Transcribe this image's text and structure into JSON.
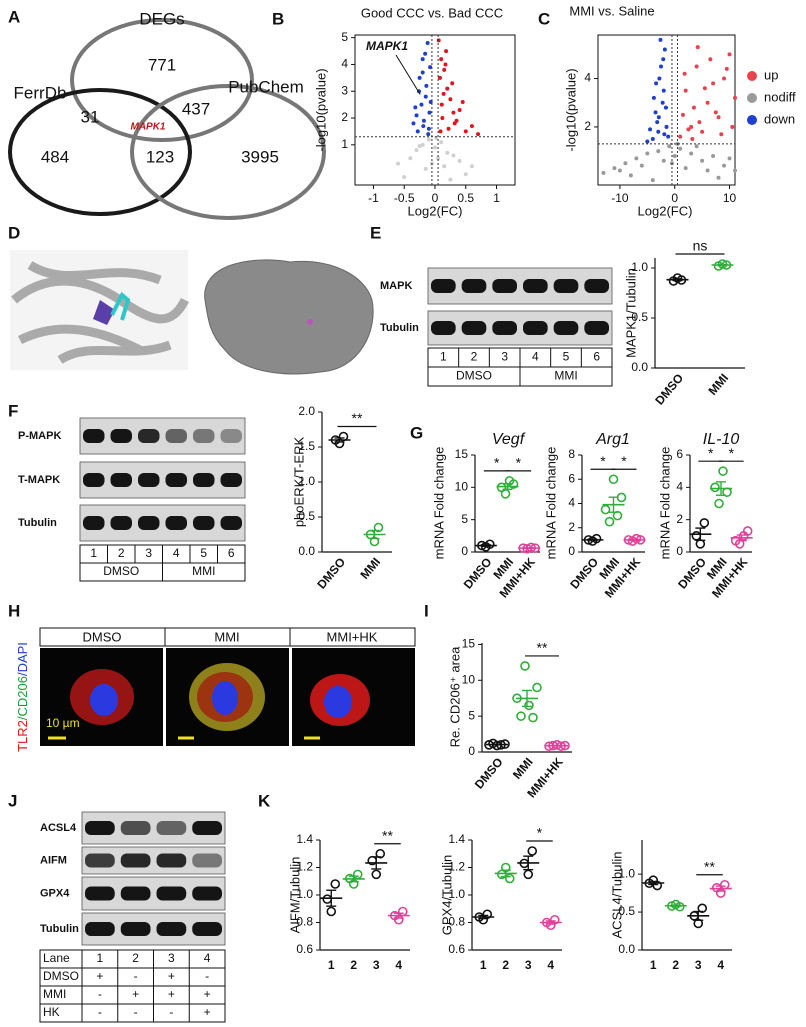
{
  "panel_labels": [
    "A",
    "B",
    "C",
    "D",
    "E",
    "F",
    "G",
    "H",
    "I",
    "J",
    "K"
  ],
  "venn": {
    "sets": [
      "DEGs",
      "FerrDb",
      "PubChem"
    ],
    "counts": [
      771,
      31,
      437,
      484,
      123,
      3995
    ],
    "highlight": "MAPK1"
  },
  "blots": [
    {
      "rows": [
        "MAPK",
        "Tubulin"
      ],
      "lanes": [
        1,
        2,
        3,
        4,
        5,
        6
      ],
      "groups": [
        "DMSO",
        "MMI"
      ]
    },
    {
      "rows": [
        "P-MAPK",
        "T-MAPK",
        "Tubulin"
      ],
      "lanes": [
        1,
        2,
        3,
        4,
        5,
        6
      ],
      "groups": [
        "DMSO",
        "MMI"
      ]
    },
    {
      "rows": [
        "ACSL4",
        "AIFM",
        "GPX4",
        "Tubulin"
      ],
      "table": [
        [
          "Lane",
          1,
          2,
          3,
          4
        ],
        [
          "DMSO",
          "+",
          "-",
          "+",
          "-"
        ],
        [
          "MMI",
          "-",
          "+",
          "+",
          "+"
        ],
        [
          "HK",
          "-",
          "-",
          "-",
          "+"
        ]
      ]
    }
  ],
  "micrographs": {
    "headers": [
      "DMSO",
      "MMI",
      "MMI+HK"
    ],
    "stain": [
      {
        "text": "TLR2",
        "color": "#e8141e"
      },
      {
        "text": "/CD206",
        "color": "#1f9e3a"
      },
      {
        "text": "/DAPI",
        "color": "#1f3fd0"
      }
    ],
    "scale_bar": "10 µm"
  },
  "chart_data": [
    {
      "type": "scatter",
      "title": "Good CCC vs. Bad CCC",
      "x_label": "Log2(FC)",
      "y_label": "-log10(pvalue)",
      "xlim": [
        -1.3,
        1.3
      ],
      "ylim": [
        -0.5,
        5.1
      ],
      "xticks": [
        -1,
        -0.5,
        0,
        0.5,
        1
      ],
      "yticks": [
        1,
        2,
        3,
        4,
        5
      ],
      "hlines": [
        1.3
      ],
      "vlines": [
        -0.05,
        0.05
      ],
      "annotation": {
        "label": "MAPK1",
        "x": -0.24,
        "y": 2.88
      },
      "series": [
        {
          "color": "#d0d0d0",
          "x": [
            -0.6,
            -0.4,
            -0.3,
            -0.2,
            -0.1,
            0,
            0.1,
            0.2,
            0.3,
            0.4,
            0.6,
            -0.05,
            0.05,
            -0.15,
            0.15,
            -0.5,
            0.5,
            0.25,
            -0.25,
            0.02
          ],
          "values": [
            0.3,
            0.5,
            0.8,
            1.0,
            1.2,
            0.9,
            1.1,
            0.7,
            0.6,
            0.4,
            0.2,
            0.3,
            0.5,
            0.1,
            0.2,
            -0.2,
            -0.1,
            -0.3,
            0.95,
            1.25
          ]
        },
        {
          "color": "#1f3fd0",
          "x": [
            -0.3,
            -0.25,
            -0.2,
            -0.15,
            -0.1,
            -0.08,
            -0.12,
            -0.18,
            -0.22,
            -0.28,
            -0.35,
            -0.14,
            -0.09,
            -0.2,
            -0.26,
            -0.11,
            -0.16,
            -0.07,
            -0.32,
            -0.19
          ],
          "values": [
            2.1,
            3.5,
            4.2,
            2.8,
            1.6,
            3.9,
            4.8,
            1.9,
            2.5,
            1.5,
            1.8,
            3.2,
            2.2,
            3.7,
            3.0,
            1.4,
            4.4,
            2.6,
            2.4,
            1.7
          ]
        },
        {
          "color": "#e0141e",
          "x": [
            0.06,
            0.1,
            0.15,
            0.2,
            0.25,
            0.3,
            0.08,
            0.12,
            0.18,
            0.22,
            0.35,
            0.4,
            0.5,
            0.6,
            0.7,
            0.14,
            0.28,
            0.09,
            0.45,
            0.17,
            0.32,
            0.11
          ],
          "values": [
            4.9,
            4.2,
            3.8,
            3.1,
            2.7,
            2.2,
            3.5,
            2.0,
            4.5,
            1.6,
            1.9,
            2.3,
            1.5,
            1.7,
            1.4,
            2.9,
            3.3,
            1.5,
            2.6,
            4.0,
            1.8,
            2.5
          ]
        }
      ]
    },
    {
      "type": "scatter",
      "title": "MMI vs. Saline",
      "x_label": "Log2(FC)",
      "y_label": "-log10(pvalue)",
      "xlim": [
        -14,
        11
      ],
      "ylim": [
        -0.4,
        5.8
      ],
      "xticks": [
        -10,
        0,
        10
      ],
      "yticks": [
        2,
        4
      ],
      "hlines": [
        1.3
      ],
      "vlines": [
        -0.5,
        0.5
      ],
      "legend": "right",
      "series": [
        {
          "name": "up",
          "color": "#e8424c",
          "x": [
            1,
            1.5,
            2,
            3,
            4,
            5,
            6,
            7,
            8,
            9,
            10,
            11,
            2.5,
            3.5,
            4.5,
            6.5,
            8.5,
            1.8,
            5.5,
            7.5,
            9.5,
            3.2,
            10.5,
            4.2
          ],
          "values": [
            1.6,
            2.5,
            3.5,
            2.0,
            4.5,
            1.8,
            3.0,
            3.8,
            2.4,
            4.0,
            5.0,
            3.2,
            1.9,
            2.8,
            2.2,
            4.8,
            1.7,
            4.2,
            3.6,
            2.6,
            4.4,
            1.5,
            2.0,
            5.3
          ]
        },
        {
          "name": "nodiff",
          "color": "#9a9a9a",
          "x": [
            -13,
            -11,
            -9,
            -7,
            -5,
            -3,
            -1,
            0,
            1,
            3,
            5,
            7,
            9,
            11,
            -8,
            -6,
            -4,
            -2,
            2,
            4,
            6,
            8,
            10,
            -10,
            0.5,
            -0.5
          ],
          "values": [
            0.1,
            0.3,
            0.5,
            0.7,
            0.9,
            1.0,
            1.2,
            0.8,
            1.1,
            0.9,
            0.6,
            0.8,
            0.4,
            0.2,
            0.0,
            0.4,
            -0.2,
            0.6,
            0.3,
            1.2,
            0.2,
            -0.1,
            0.7,
            0.2,
            1.3,
            0.5
          ]
        },
        {
          "name": "down",
          "color": "#1f3fd0",
          "x": [
            -1.5,
            -2,
            -2.5,
            -3,
            -3.5,
            -4,
            -1.8,
            -2.2,
            -2.8,
            -3.2,
            -1.2,
            -4.5,
            -2.6,
            -1.6,
            -3.8,
            -2.1,
            -5,
            -3.4,
            -2.9,
            -1.9
          ],
          "values": [
            2.0,
            3.5,
            4.5,
            1.8,
            2.6,
            1.5,
            5.2,
            3.0,
            4.0,
            2.2,
            1.6,
            1.9,
            5.6,
            2.8,
            3.2,
            4.8,
            1.4,
            3.8,
            2.4,
            1.7
          ]
        }
      ]
    },
    {
      "type": "dot",
      "y_label": "MAPK1/Tubulin",
      "ylim": [
        0,
        1.1
      ],
      "yticks": [
        {
          "value": 0,
          "label": "0.0"
        },
        0.5,
        {
          "value": 1,
          "label": "1.0"
        }
      ],
      "series": [
        {
          "name": "DMSO",
          "color": "#111111",
          "values": [
            0.87,
            0.9,
            0.88
          ]
        },
        {
          "name": "MMI",
          "color": "#2fae3a",
          "values": [
            1.02,
            1.04,
            1.03
          ]
        }
      ],
      "comparisons": [
        {
          "label": "ns",
          "between": [
            "DMSO",
            "MMI"
          ]
        }
      ]
    },
    {
      "type": "dot",
      "y_label": "phoERK/T-ERK",
      "ylim": [
        0,
        2
      ],
      "yticks": [
        {
          "value": 0,
          "label": "0.0"
        },
        0.5,
        {
          "value": 1,
          "label": "1.0"
        },
        1.5,
        {
          "value": 2,
          "label": "2.0"
        }
      ],
      "series": [
        {
          "name": "DMSO",
          "color": "#111111",
          "values": [
            1.6,
            1.55,
            1.65
          ]
        },
        {
          "name": "MMI",
          "color": "#2fae3a",
          "values": [
            0.25,
            0.15,
            0.35
          ]
        }
      ],
      "comparisons": [
        {
          "label": "**",
          "between": [
            "DMSO",
            "MMI"
          ]
        }
      ]
    },
    {
      "type": "dot",
      "title": "Vegf",
      "y_label": "mRNA Fold change",
      "ylim": [
        0,
        15
      ],
      "yticks": [
        0,
        5,
        10,
        15
      ],
      "series": [
        {
          "name": "DMSO",
          "color": "#111111",
          "values": [
            1,
            0.8,
            1.2
          ]
        },
        {
          "name": "MMI",
          "color": "#2fae3a",
          "values": [
            10,
            9,
            11,
            10.5
          ]
        },
        {
          "name": "MMI+HK",
          "color": "#e0409a",
          "values": [
            0.6,
            0.5,
            0.7,
            0.6
          ]
        }
      ],
      "comparisons": [
        {
          "label": "*",
          "between": [
            "DMSO",
            "MMI"
          ]
        },
        {
          "label": "*",
          "between": [
            "MMI",
            "MMI+HK"
          ]
        }
      ]
    },
    {
      "type": "dot",
      "title": "Arg1",
      "y_label": "mRNA Fold change",
      "ylim": [
        0,
        8
      ],
      "yticks": [
        0,
        2,
        4,
        6,
        8
      ],
      "series": [
        {
          "name": "DMSO",
          "color": "#111111",
          "values": [
            1,
            0.9,
            1.1
          ]
        },
        {
          "name": "MMI",
          "color": "#2fae3a",
          "values": [
            3.5,
            2.5,
            6,
            3,
            4.5
          ]
        },
        {
          "name": "MMI+HK",
          "color": "#e0409a",
          "values": [
            1,
            0.9,
            1.1,
            1
          ]
        }
      ],
      "comparisons": [
        {
          "label": "*",
          "between": [
            "DMSO",
            "MMI"
          ]
        },
        {
          "label": "*",
          "between": [
            "MMI",
            "MMI+HK"
          ]
        }
      ]
    },
    {
      "type": "dot",
      "title": "IL-10",
      "y_label": "mRNA Fold change",
      "ylim": [
        0,
        6
      ],
      "yticks": [
        0,
        2,
        4,
        6
      ],
      "series": [
        {
          "name": "DMSO",
          "color": "#111111",
          "values": [
            1,
            0.5,
            1.8
          ]
        },
        {
          "name": "MMI",
          "color": "#2fae3a",
          "values": [
            4,
            3,
            5,
            3.7
          ]
        },
        {
          "name": "MMI+HK",
          "color": "#e0409a",
          "values": [
            0.7,
            0.5,
            1,
            1.3
          ]
        }
      ],
      "comparisons": [
        {
          "label": "*",
          "between": [
            "DMSO",
            "MMI"
          ]
        },
        {
          "label": "*",
          "between": [
            "MMI",
            "MMI+HK"
          ]
        }
      ]
    },
    {
      "type": "dot",
      "y_label": "Re. CD206⁺ area",
      "ylim": [
        0,
        15.2
      ],
      "yticks": [
        0,
        5,
        10,
        15
      ],
      "series": [
        {
          "name": "DMSO",
          "color": "#111111",
          "values": [
            1,
            1.2,
            0.9,
            1,
            1.1
          ]
        },
        {
          "name": "MMI",
          "color": "#2fae3a",
          "values": [
            7.5,
            5,
            12,
            6.5,
            4.8,
            9
          ]
        },
        {
          "name": "MMI+HK",
          "color": "#e0409a",
          "values": [
            0.8,
            0.9,
            1,
            0.8,
            0.9
          ]
        }
      ],
      "comparisons": [
        {
          "label": "**",
          "between": [
            "MMI",
            "MMI+HK"
          ]
        }
      ]
    },
    {
      "type": "dot",
      "y_label": "AIFM/Tubulin",
      "ylim": [
        0.6,
        1.4
      ],
      "yticks": [
        0.6,
        0.8,
        {
          "value": 1,
          "label": "1.0"
        },
        1.2,
        1.4
      ],
      "series": [
        {
          "name": "1",
          "color": "#111111",
          "values": [
            0.97,
            0.88,
            1.08
          ]
        },
        {
          "name": "2",
          "color": "#2fae3a",
          "values": [
            1.12,
            1.08,
            1.15
          ]
        },
        {
          "name": "3",
          "color": "#111111",
          "values": [
            1.25,
            1.15,
            1.3
          ]
        },
        {
          "name": "4",
          "color": "#e0409a",
          "values": [
            0.85,
            0.82,
            0.88
          ]
        }
      ],
      "comparisons": [
        {
          "label": "**",
          "between": [
            "3",
            "4"
          ]
        }
      ]
    },
    {
      "type": "dot",
      "y_label": "GPX4/Tubulin",
      "ylim": [
        0.6,
        1.4
      ],
      "yticks": [
        0.6,
        0.8,
        {
          "value": 1,
          "label": "1.0"
        },
        1.2,
        1.4
      ],
      "series": [
        {
          "name": "1",
          "color": "#111111",
          "values": [
            0.84,
            0.82,
            0.86
          ]
        },
        {
          "name": "2",
          "color": "#2fae3a",
          "values": [
            1.15,
            1.2,
            1.12
          ]
        },
        {
          "name": "3",
          "color": "#111111",
          "values": [
            1.23,
            1.15,
            1.32
          ]
        },
        {
          "name": "4",
          "color": "#e0409a",
          "values": [
            0.8,
            0.78,
            0.82
          ]
        }
      ],
      "comparisons": [
        {
          "label": "*",
          "between": [
            "3",
            "4"
          ]
        }
      ]
    },
    {
      "type": "dot",
      "y_label": "ACSL4/Tubulin",
      "ylim": [
        0,
        1.45
      ],
      "yticks": [
        {
          "value": 0,
          "label": "0.0"
        },
        0.5,
        {
          "value": 1,
          "label": "1.0"
        }
      ],
      "series": [
        {
          "name": "1",
          "color": "#111111",
          "values": [
            0.88,
            0.92,
            0.85
          ]
        },
        {
          "name": "2",
          "color": "#2fae3a",
          "values": [
            0.58,
            0.6,
            0.57
          ]
        },
        {
          "name": "3",
          "color": "#111111",
          "values": [
            0.45,
            0.35,
            0.55
          ]
        },
        {
          "name": "4",
          "color": "#e0409a",
          "values": [
            0.82,
            0.75,
            0.86
          ]
        }
      ],
      "comparisons": [
        {
          "label": "**",
          "between": [
            "3",
            "4"
          ]
        }
      ]
    }
  ]
}
